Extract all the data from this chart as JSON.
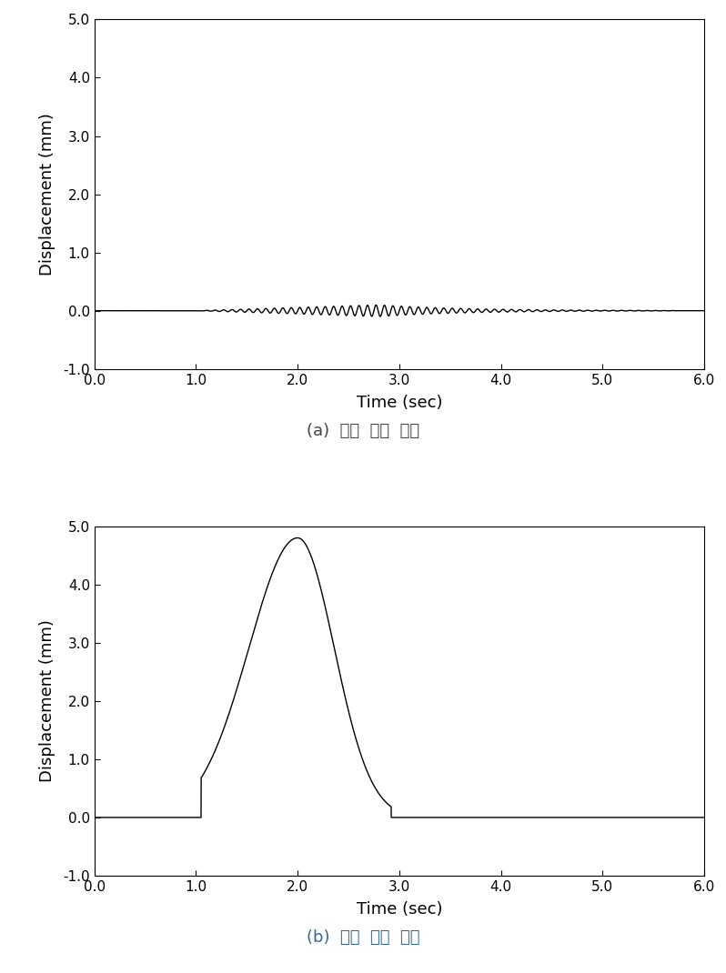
{
  "plot_a": {
    "xlabel": "Time (sec)",
    "ylabel": "Displacement (mm)",
    "xlim": [
      0.0,
      6.0
    ],
    "ylim": [
      -1.0,
      5.0
    ],
    "xticks": [
      0.0,
      1.0,
      2.0,
      3.0,
      4.0,
      5.0,
      6.0
    ],
    "yticks": [
      -1.0,
      0.0,
      1.0,
      2.0,
      3.0,
      4.0,
      5.0
    ],
    "caption": "(a)  동적  변위  성분",
    "line_color": "#000000",
    "noise_start": 1.0,
    "noise_peak": 2.8,
    "noise_end": 5.7,
    "noise_amplitude": 0.1,
    "noise_freq": 12.0
  },
  "plot_b": {
    "xlabel": "Time (sec)",
    "ylabel": "Displacement (mm)",
    "xlim": [
      0.0,
      6.0
    ],
    "ylim": [
      -1.0,
      5.0
    ],
    "xticks": [
      0.0,
      1.0,
      2.0,
      3.0,
      4.0,
      5.0,
      6.0
    ],
    "yticks": [
      -1.0,
      0.0,
      1.0,
      2.0,
      3.0,
      4.0,
      5.0
    ],
    "caption": "(b)  정적  변위  성분",
    "line_color": "#000000",
    "peak_time": 2.0,
    "peak_value": 4.8,
    "rise_start": 1.05,
    "fall_end": 2.92,
    "sigma_rise": 0.48,
    "sigma_fall": 0.36
  },
  "caption_a_color": "#444444",
  "caption_b_color": "#336699",
  "background_color": "#ffffff",
  "tick_fontsize": 11,
  "label_fontsize": 13,
  "caption_fontsize": 13,
  "line_width": 1.0
}
